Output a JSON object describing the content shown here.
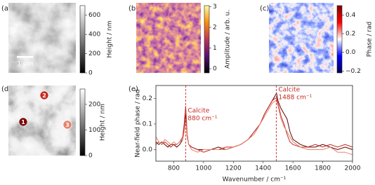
{
  "chart_data": [
    {
      "type": "heatmap",
      "panel": "(a)",
      "colormap": "gray",
      "colorbar_label": "Height / nm",
      "clim": [
        0,
        700
      ],
      "cticks": [
        0,
        200,
        400,
        600
      ],
      "scalebar": "1 µm"
    },
    {
      "type": "heatmap",
      "panel": "(b)",
      "colormap": "inferno",
      "colorbar_label": "Amplitude / arb. u.",
      "clim": [
        -0.2,
        3.05
      ],
      "cticks": [
        0,
        1,
        2,
        3
      ]
    },
    {
      "type": "heatmap",
      "panel": "(c)",
      "colormap": "seismic",
      "colorbar_label": "Phase / rad",
      "clim": [
        -0.22,
        0.5
      ],
      "cticks": [
        {
          "value": -0.2,
          "label": "−0.2"
        },
        {
          "value": 0.0,
          "label": "0.0"
        },
        {
          "value": 0.2,
          "label": "0.2"
        },
        {
          "value": 0.4,
          "label": "0.4"
        }
      ]
    },
    {
      "type": "heatmap",
      "panel": "(d)",
      "colormap": "gray",
      "colorbar_label": "Height / nm",
      "clim": [
        0,
        260
      ],
      "cticks": [
        0,
        100,
        200
      ],
      "markers": [
        {
          "label": "1",
          "color": "#7a0a0a"
        },
        {
          "label": "2",
          "color": "#c62a22"
        },
        {
          "label": "3",
          "color": "#e8806c"
        }
      ]
    },
    {
      "type": "line",
      "panel": "(e)",
      "x_label": "Wavenumber / cm⁻¹",
      "y_label": "Near-field phase / rad",
      "xlim": [
        680,
        2000
      ],
      "xticks": [
        800,
        1000,
        1200,
        1400,
        1600,
        1800,
        2000
      ],
      "ylim": [
        -0.045,
        0.25
      ],
      "yticks": [
        {
          "value": 0.0,
          "label": "0.0"
        },
        {
          "value": 0.1,
          "label": "0.1"
        },
        {
          "value": 0.2,
          "label": "0.2"
        }
      ],
      "annotations": [
        {
          "x": 880,
          "lines": [
            "Calcite",
            "880 cm⁻¹"
          ],
          "color": "#c62a22"
        },
        {
          "x": 1488,
          "lines": [
            "Calcite",
            "1488 cm⁻¹"
          ],
          "color": "#c62a22"
        }
      ],
      "x": [
        680,
        700,
        720,
        740,
        760,
        780,
        800,
        820,
        840,
        860,
        870,
        880,
        890,
        900,
        920,
        960,
        1000,
        1050,
        1100,
        1150,
        1200,
        1250,
        1300,
        1340,
        1380,
        1410,
        1440,
        1460,
        1480,
        1490,
        1500,
        1520,
        1540,
        1560,
        1580,
        1600,
        1650,
        1700,
        1750,
        1800,
        1850,
        1900,
        1950,
        2000
      ],
      "series": [
        {
          "name": "1",
          "color": "#5a0505",
          "values": [
            0.03,
            0.02,
            0.03,
            0.02,
            0.01,
            0.02,
            0.02,
            0.01,
            0.02,
            0.04,
            0.08,
            0.14,
            0.05,
            0.02,
            0.01,
            0.0,
            0.0,
            0.0,
            0.01,
            0.0,
            0.01,
            0.02,
            0.04,
            0.07,
            0.1,
            0.14,
            0.17,
            0.19,
            0.21,
            0.22,
            0.19,
            0.16,
            0.14,
            0.12,
            0.07,
            0.04,
            0.02,
            0.01,
            0.01,
            0.02,
            0.01,
            0.0,
            0.01,
            0.0
          ]
        },
        {
          "name": "2",
          "color": "#c62a22",
          "values": [
            0.02,
            0.03,
            0.02,
            0.03,
            0.02,
            0.01,
            0.02,
            0.02,
            0.03,
            0.05,
            0.1,
            0.17,
            0.06,
            0.02,
            0.01,
            0.0,
            -0.01,
            0.0,
            0.0,
            0.01,
            0.01,
            0.02,
            0.04,
            0.07,
            0.1,
            0.14,
            0.17,
            0.19,
            0.2,
            0.2,
            0.18,
            0.13,
            0.1,
            0.06,
            0.03,
            0.02,
            0.01,
            0.01,
            0.02,
            0.01,
            0.02,
            0.01,
            0.02,
            0.01
          ]
        },
        {
          "name": "3",
          "color": "#e8806c",
          "values": [
            0.05,
            0.03,
            0.02,
            0.04,
            0.03,
            0.02,
            0.03,
            0.02,
            0.03,
            0.04,
            0.07,
            0.12,
            0.05,
            0.02,
            0.0,
            -0.01,
            0.0,
            0.0,
            0.0,
            0.0,
            0.01,
            0.02,
            0.04,
            0.06,
            0.1,
            0.13,
            0.16,
            0.18,
            0.19,
            0.19,
            0.17,
            0.12,
            0.09,
            0.07,
            0.05,
            0.03,
            0.01,
            0.0,
            0.0,
            0.0,
            0.01,
            -0.01,
            -0.01,
            -0.02
          ]
        }
      ]
    }
  ]
}
